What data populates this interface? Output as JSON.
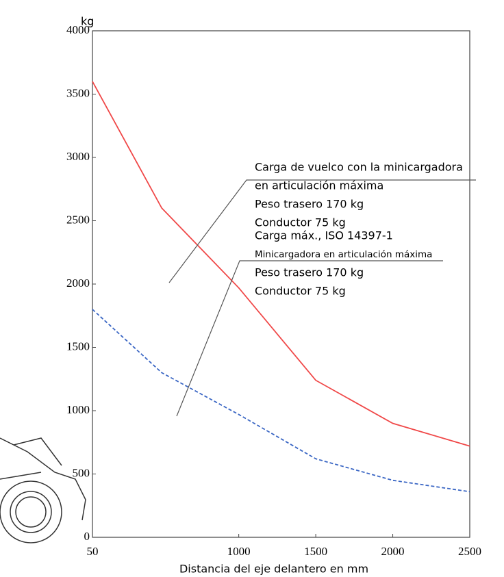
{
  "chart_data": {
    "type": "line",
    "y_label": "kg",
    "x_label": "Distancia del eje delantero en mm",
    "x": [
      50,
      500,
      1000,
      1500,
      2000,
      2500
    ],
    "series": [
      {
        "color": "#f04848",
        "dash": false,
        "values": [
          3600,
          2600,
          1970,
          1240,
          900,
          720
        ]
      },
      {
        "color": "#3a66c4",
        "dash": true,
        "values": [
          1800,
          1300,
          970,
          620,
          450,
          360
        ]
      }
    ],
    "xlim": [
      50,
      2500
    ],
    "xticks": [
      50,
      1000,
      1500,
      2000,
      2500
    ],
    "ylim": [
      0,
      4000
    ],
    "yticks": [
      0,
      500,
      1000,
      1500,
      2000,
      2500,
      3000,
      3500,
      4000
    ],
    "grid": false,
    "annotations": [
      {
        "lines": [
          "Carga de vuelco con la minicargadora",
          "en articulación máxima",
          "Peso trasero 170 kg",
          "Conductor 75 kg"
        ]
      },
      {
        "lines": [
          "Carga máx., ISO 14397-1",
          "Minicargadora en articulación máxima",
          "Peso trasero 170 kg",
          "Conductor 75 kg"
        ]
      }
    ]
  }
}
